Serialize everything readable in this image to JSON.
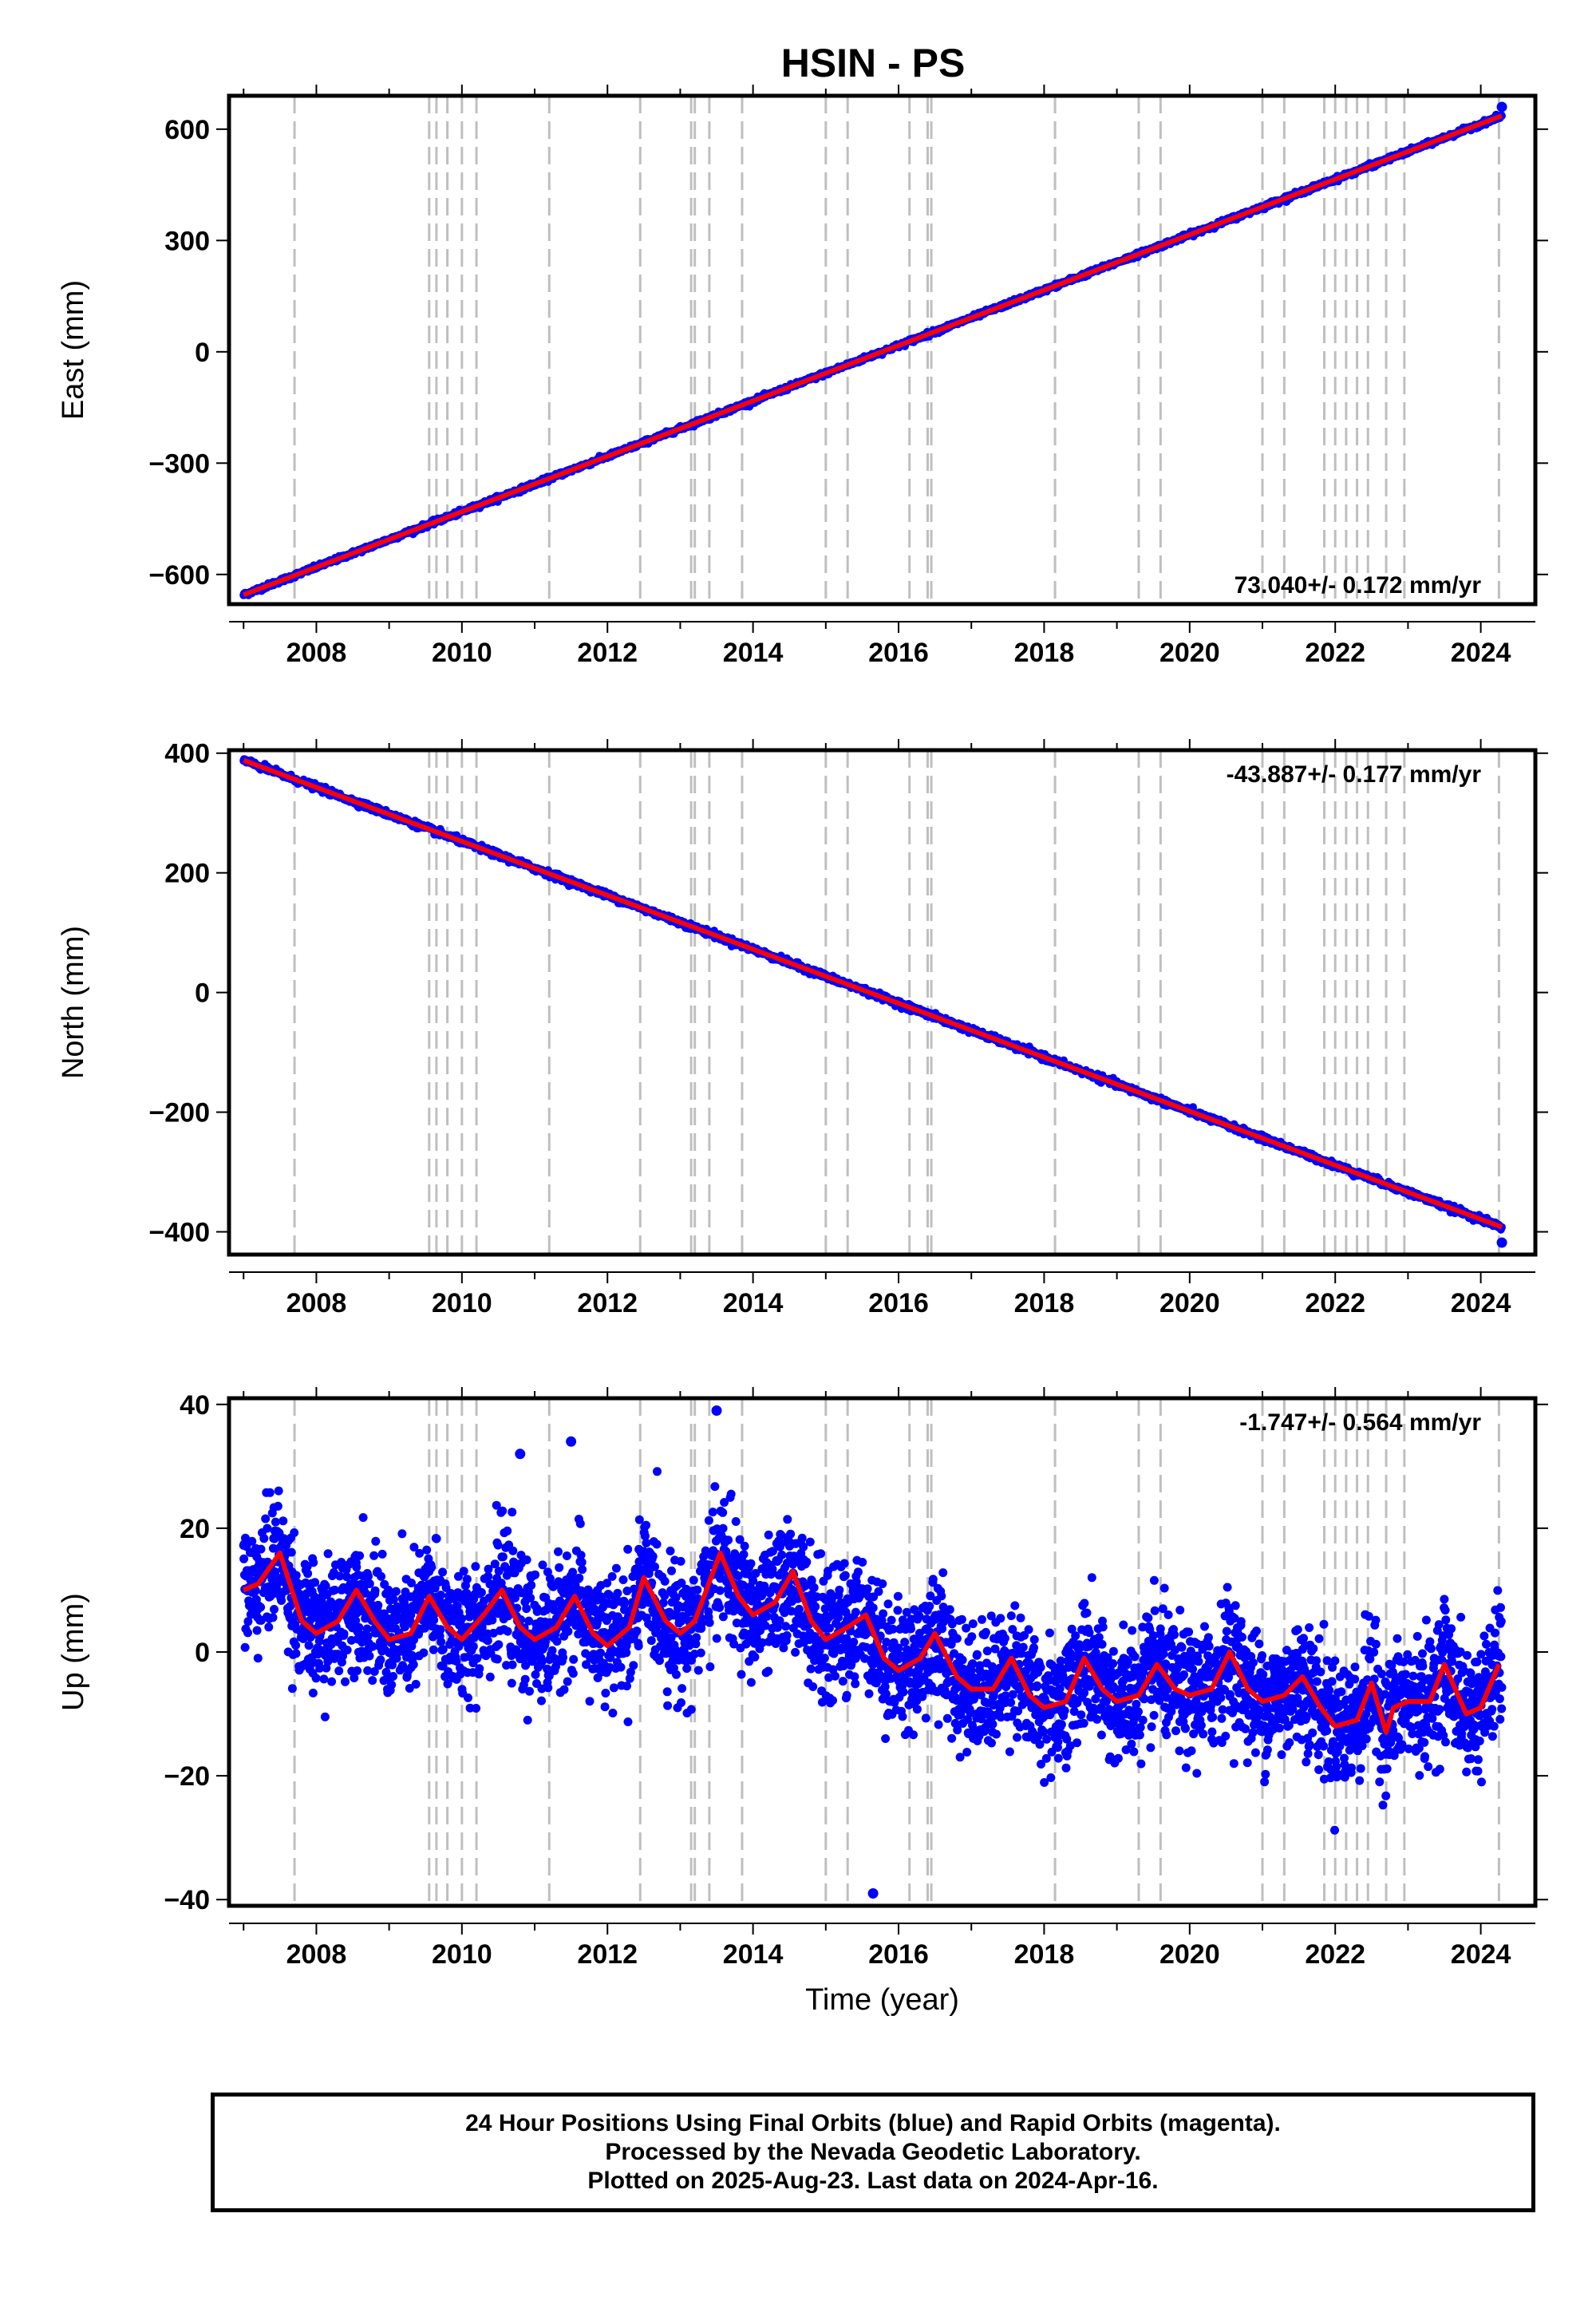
{
  "page_title": "HSIN - PS",
  "colors": {
    "final_orbits": "#0000ff",
    "rapid_orbits": "#ff00ff",
    "model": "#ff0000",
    "event_lines": "#bfbfbf"
  },
  "footer": {
    "line1": "24 Hour Positions Using Final Orbits (blue) and Rapid Orbits (magenta).",
    "line2": "Processed by the Nevada Geodetic Laboratory.",
    "line3": "Plotted on 2025-Aug-23. Last data on 2024-Apr-16."
  },
  "chart_data": [
    {
      "type": "scatter",
      "title": "HSIN - PS",
      "ylabel": "East (mm)",
      "xlim": [
        2006.8,
        2024.75
      ],
      "ylim": [
        -680,
        690
      ],
      "x_ticks": [
        2008,
        2010,
        2012,
        2014,
        2016,
        2018,
        2020,
        2022,
        2024
      ],
      "y_ticks": [
        -600,
        -300,
        0,
        300,
        600
      ],
      "rate_label": "73.040+/- 0.172 mm/yr",
      "rate_position": "bottom-right",
      "start": {
        "x": 2007.0,
        "y": -655
      },
      "end": {
        "x": 2024.29,
        "y": 636
      },
      "scatter_sd": 3,
      "seasonal_amplitude": 0,
      "outliers": [
        {
          "x": 2024.29,
          "y": 660
        }
      ],
      "event_lines": [
        2007.7,
        2009.55,
        2009.65,
        2009.8,
        2010.0,
        2010.2,
        2011.2,
        2012.45,
        2013.15,
        2013.2,
        2013.4,
        2013.85,
        2015.0,
        2015.3,
        2016.15,
        2016.4,
        2016.45,
        2018.15,
        2019.3,
        2019.6,
        2021.0,
        2021.3,
        2021.85,
        2022.0,
        2022.15,
        2022.3,
        2022.45,
        2022.7,
        2022.95,
        2024.25
      ]
    },
    {
      "type": "scatter",
      "ylabel": "North (mm)",
      "xlim": [
        2006.8,
        2024.75
      ],
      "ylim": [
        -438,
        405
      ],
      "x_ticks": [
        2008,
        2010,
        2012,
        2014,
        2016,
        2018,
        2020,
        2022,
        2024
      ],
      "y_ticks": [
        -400,
        -200,
        0,
        200,
        400
      ],
      "rate_label": "-43.887+/- 0.177 mm/yr",
      "rate_position": "top-right",
      "start": {
        "x": 2007.0,
        "y": 388
      },
      "end": {
        "x": 2024.29,
        "y": -392
      },
      "scatter_sd": 2.5,
      "seasonal_amplitude": 0,
      "outliers": [
        {
          "x": 2024.29,
          "y": -418
        }
      ],
      "event_lines": [
        2007.7,
        2009.55,
        2009.65,
        2009.8,
        2010.0,
        2010.2,
        2011.2,
        2012.45,
        2013.15,
        2013.2,
        2013.4,
        2013.85,
        2015.0,
        2015.3,
        2016.15,
        2016.4,
        2016.45,
        2018.15,
        2019.3,
        2019.6,
        2021.0,
        2021.3,
        2021.85,
        2022.0,
        2022.15,
        2022.3,
        2022.45,
        2022.7,
        2022.95,
        2024.25
      ]
    },
    {
      "type": "scatter",
      "ylabel": "Up (mm)",
      "xlabel": "Time (year)",
      "xlim": [
        2006.8,
        2024.75
      ],
      "ylim": [
        -41,
        41
      ],
      "x_ticks": [
        2008,
        2010,
        2012,
        2014,
        2016,
        2018,
        2020,
        2022,
        2024
      ],
      "y_ticks": [
        -40,
        -20,
        0,
        20,
        40
      ],
      "rate_label": "-1.747+/- 0.564 mm/yr",
      "rate_position": "top-right",
      "start": {
        "x": 2007.0,
        "y": 8
      },
      "end": {
        "x": 2024.29,
        "y": -8
      },
      "scatter_sd": 5,
      "seasonal_amplitude": 4.5,
      "outliers": [
        {
          "x": 2013.5,
          "y": 39
        },
        {
          "x": 2015.65,
          "y": -39
        },
        {
          "x": 2011.5,
          "y": 34
        },
        {
          "x": 2010.8,
          "y": 32
        }
      ],
      "model_curve": {
        "x": [
          2007.0,
          2007.2,
          2007.5,
          2007.8,
          2008.0,
          2008.3,
          2008.55,
          2008.8,
          2009.0,
          2009.3,
          2009.55,
          2009.8,
          2010.0,
          2010.3,
          2010.55,
          2010.8,
          2011.0,
          2011.3,
          2011.55,
          2011.8,
          2012.0,
          2012.3,
          2012.5,
          2012.8,
          2013.0,
          2013.2,
          2013.55,
          2013.8,
          2014.0,
          2014.3,
          2014.55,
          2014.8,
          2015.0,
          2015.3,
          2015.55,
          2015.8,
          2016.0,
          2016.3,
          2016.5,
          2016.8,
          2017.0,
          2017.3,
          2017.55,
          2017.8,
          2018.0,
          2018.3,
          2018.55,
          2018.8,
          2019.0,
          2019.3,
          2019.55,
          2019.8,
          2020.0,
          2020.3,
          2020.55,
          2020.8,
          2021.0,
          2021.3,
          2021.55,
          2021.8,
          2022.0,
          2022.3,
          2022.5,
          2022.7,
          2022.8,
          2023.0,
          2023.3,
          2023.5,
          2023.8,
          2024.0,
          2024.25
        ],
        "y": [
          10,
          11,
          16,
          5,
          3,
          5,
          10,
          5,
          2,
          3,
          9,
          4,
          2,
          6,
          10,
          4,
          2,
          4,
          9,
          3,
          1,
          4,
          12,
          5,
          3,
          5,
          16,
          9,
          6,
          8,
          13,
          5,
          2,
          4,
          6,
          -1,
          -3,
          -1,
          3,
          -4,
          -6,
          -6,
          -1,
          -7,
          -9,
          -8,
          -1,
          -6,
          -8,
          -7,
          -2,
          -6,
          -7,
          -6,
          0,
          -6,
          -8,
          -7,
          -4,
          -9,
          -12,
          -11,
          -5,
          -13,
          -9,
          -8,
          -8,
          -2,
          -10,
          -9,
          -2
        ]
      },
      "event_lines": [
        2007.7,
        2009.55,
        2009.65,
        2009.8,
        2010.0,
        2010.2,
        2011.2,
        2012.45,
        2013.15,
        2013.2,
        2013.4,
        2013.85,
        2015.0,
        2015.3,
        2016.15,
        2016.4,
        2016.45,
        2018.15,
        2019.3,
        2019.6,
        2021.0,
        2021.3,
        2021.85,
        2022.0,
        2022.15,
        2022.3,
        2022.45,
        2022.7,
        2022.95,
        2024.25
      ]
    }
  ]
}
